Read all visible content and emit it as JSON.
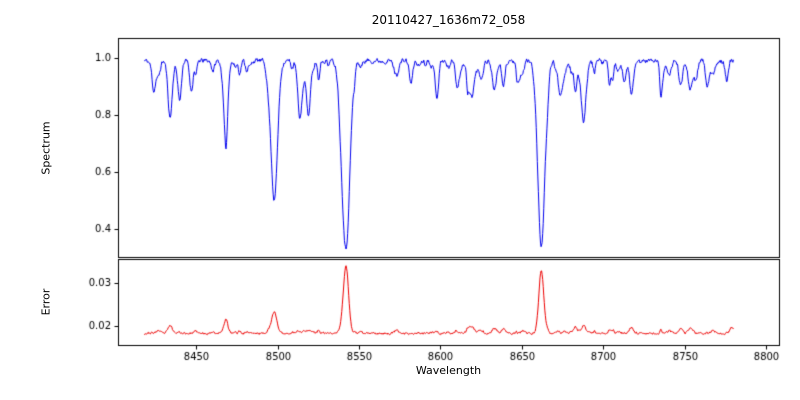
{
  "figure": {
    "background": "#ffffff"
  },
  "chart_data": [
    {
      "type": "line",
      "name": "spectrum",
      "title": "20110427_1636m72_058",
      "ylabel": "Spectrum",
      "color": "#0000ee",
      "xlim": [
        8402,
        8808
      ],
      "ylim": [
        0.3,
        1.07
      ],
      "yticks": [
        0.4,
        0.6,
        0.8,
        1.0
      ],
      "ytick_labels": [
        "0.4",
        "0.6",
        "0.8",
        "1.0"
      ],
      "x_start": 8418,
      "x_end": 8780,
      "n_points": 1100,
      "continuum": 0.99,
      "noise_amplitude": 0.015,
      "noise_seed": 11,
      "micro_lines": {
        "seed": 7,
        "count": 90,
        "depth_min": 0.005,
        "depth_max": 0.06,
        "width_min": 0.4,
        "width_max": 1.3
      },
      "absorption_lines": [
        {
          "center": 8424,
          "depth": 0.1,
          "width": 1.0
        },
        {
          "center": 8434,
          "depth": 0.2,
          "width": 1.3
        },
        {
          "center": 8440,
          "depth": 0.12,
          "width": 1.0
        },
        {
          "center": 8447,
          "depth": 0.1,
          "width": 1.0
        },
        {
          "center": 8468,
          "depth": 0.21,
          "width": 1.4
        },
        {
          "center": 8498,
          "depth": 0.49,
          "width": 2.0
        },
        {
          "center": 8514,
          "depth": 0.17,
          "width": 1.2
        },
        {
          "center": 8519,
          "depth": 0.13,
          "width": 1.0
        },
        {
          "center": 8542,
          "depth": 0.66,
          "width": 2.4
        },
        {
          "center": 8582,
          "depth": 0.08,
          "width": 1.0
        },
        {
          "center": 8598,
          "depth": 0.09,
          "width": 1.0
        },
        {
          "center": 8611,
          "depth": 0.06,
          "width": 0.9
        },
        {
          "center": 8648,
          "depth": 0.08,
          "width": 1.0
        },
        {
          "center": 8662,
          "depth": 0.65,
          "width": 2.2
        },
        {
          "center": 8674,
          "depth": 0.11,
          "width": 1.0
        },
        {
          "center": 8688,
          "depth": 0.21,
          "width": 1.4
        },
        {
          "center": 8713,
          "depth": 0.08,
          "width": 1.0
        },
        {
          "center": 8736,
          "depth": 0.08,
          "width": 1.0
        },
        {
          "center": 8757,
          "depth": 0.07,
          "width": 0.9
        },
        {
          "center": 8764,
          "depth": 0.09,
          "width": 1.0
        },
        {
          "center": 8776,
          "depth": 0.07,
          "width": 0.9
        }
      ]
    },
    {
      "type": "line",
      "name": "error",
      "ylabel": "Error",
      "xlabel": "Wavelength",
      "color": "#ee0000",
      "xlim": [
        8402,
        8808
      ],
      "ylim": [
        0.0155,
        0.0355
      ],
      "yticks": [
        0.02,
        0.03
      ],
      "ytick_labels": [
        "0.02",
        "0.03"
      ],
      "xticks": [
        8450,
        8500,
        8550,
        8600,
        8650,
        8700,
        8750,
        8800
      ],
      "xtick_labels": [
        "8450",
        "8500",
        "8550",
        "8600",
        "8650",
        "8700",
        "8750",
        "8800"
      ],
      "baseline": 0.0182,
      "noise_amplitude": 0.0004,
      "noise_seed": 23,
      "micro_coupling": 0.012,
      "peaks": [
        {
          "center": 8434,
          "height": 0.0018,
          "width": 1.3
        },
        {
          "center": 8468,
          "height": 0.0022,
          "width": 1.4
        },
        {
          "center": 8498,
          "height": 0.005,
          "width": 1.6
        },
        {
          "center": 8542,
          "height": 0.0158,
          "width": 1.6
        },
        {
          "center": 8662,
          "height": 0.0148,
          "width": 1.5
        },
        {
          "center": 8688,
          "height": 0.0018,
          "width": 1.3
        },
        {
          "center": 8779,
          "height": 0.0014,
          "width": 1.1
        }
      ]
    }
  ]
}
